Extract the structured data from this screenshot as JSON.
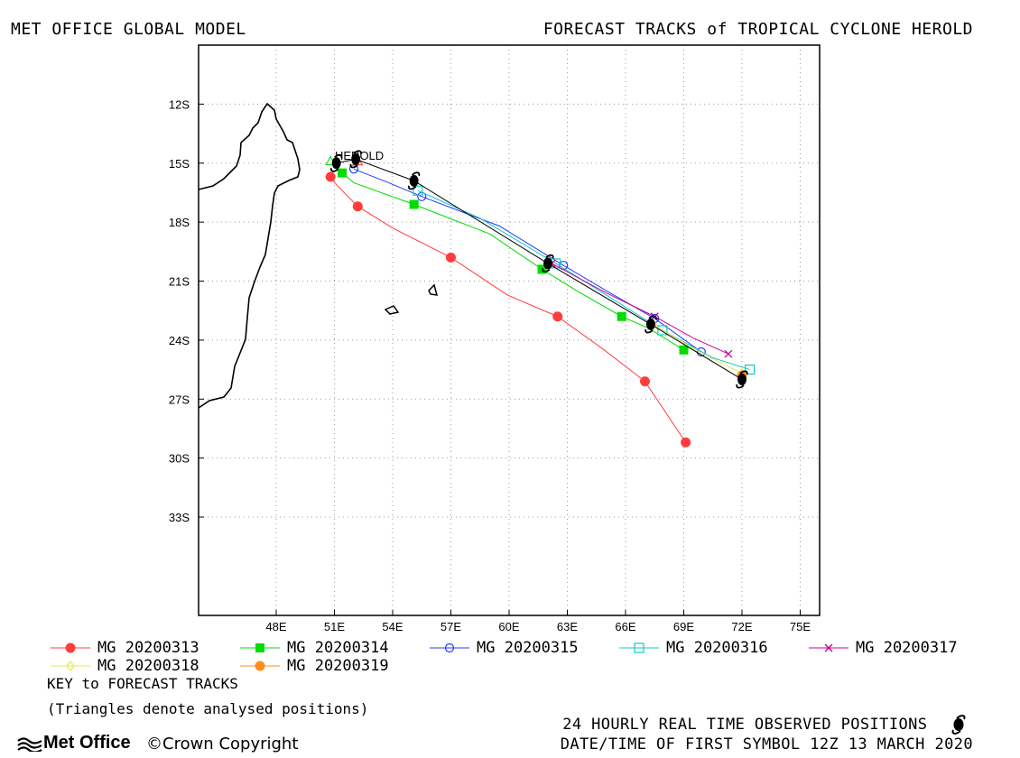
{
  "header": {
    "left_title": "MET OFFICE GLOBAL MODEL",
    "right_title": "FORECAST TRACKS of TROPICAL CYCLONE HEROLD"
  },
  "map": {
    "lon_range": [
      44.0,
      76.0
    ],
    "lat_range": [
      -38.0,
      -9.0
    ],
    "lon_ticks": [
      "48E",
      "51E",
      "54E",
      "57E",
      "60E",
      "63E",
      "66E",
      "69E",
      "72E",
      "75E"
    ],
    "lat_ticks": [
      "12S",
      "15S",
      "18S",
      "21S",
      "24S",
      "27S",
      "30S",
      "33S"
    ],
    "storm_label": "HEROLD",
    "grid": "dotted"
  },
  "chart_data": {
    "type": "line",
    "series": [
      {
        "name": "MG 20200313",
        "color": "#ff3c3c",
        "marker": "filled-circle",
        "lon": [
          50.8,
          51.1,
          52.2,
          54.0,
          57.0,
          59.9,
          62.5,
          64.9,
          67.0,
          69.1
        ],
        "lat": [
          -15.7,
          -16.1,
          -17.2,
          -18.3,
          -19.8,
          -21.7,
          -22.8,
          -24.5,
          -26.1,
          -29.2
        ]
      },
      {
        "name": "MG 20200314",
        "color": "#00dc00",
        "marker": "filled-square",
        "lon": [
          51.4,
          52.0,
          55.1,
          59.0,
          61.7,
          63.5,
          65.8,
          67.2,
          69.0
        ],
        "lat": [
          -15.5,
          -16.0,
          -17.1,
          -18.6,
          -20.4,
          -21.5,
          -22.8,
          -23.4,
          -24.5
        ]
      },
      {
        "name": "MG 20200315",
        "color": "#1e3cff",
        "marker": "open-circle",
        "lon": [
          52.0,
          53.8,
          55.5,
          59.5,
          62.8,
          65.2,
          67.5,
          69.9
        ],
        "lat": [
          -15.3,
          -16.0,
          -16.7,
          -18.2,
          -20.2,
          -21.6,
          -22.9,
          -24.6
        ]
      },
      {
        "name": "MG 20200316",
        "color": "#14c8c8",
        "marker": "open-square",
        "lon": [
          55.3,
          58.5,
          62.4,
          65.0,
          67.9,
          70.5,
          72.4
        ],
        "lat": [
          -16.4,
          -17.8,
          -20.1,
          -21.7,
          -23.5,
          -24.9,
          -25.5
        ]
      },
      {
        "name": "MG 20200317",
        "color": "#c8009b",
        "marker": "x",
        "lon": [
          62.2,
          65.0,
          67.5,
          69.5,
          71.3
        ],
        "lat": [
          -20.1,
          -21.6,
          -22.8,
          -23.9,
          -24.7
        ]
      },
      {
        "name": "MG 20200318",
        "color": "#e6e650",
        "marker": "open-diamond",
        "lon": [
          67.4,
          69.8,
          72.0
        ],
        "lat": [
          -23.2,
          -24.6,
          -25.7
        ]
      },
      {
        "name": "MG 20200319",
        "color": "#ff8c1e",
        "marker": "filled-circle",
        "lon": [
          72.0
        ],
        "lat": [
          -25.8
        ]
      }
    ],
    "observed": {
      "name": "24 HOURLY REAL TIME OBSERVED POSITIONS",
      "lon": [
        51.1,
        52.1,
        55.1,
        62.0,
        67.3,
        72.0
      ],
      "lat": [
        -15.0,
        -14.8,
        -15.9,
        -20.1,
        -23.2,
        -26.0
      ]
    },
    "analysed_triangles": {
      "lon": [
        50.8,
        52.2
      ],
      "lat": [
        -14.9,
        -14.9
      ]
    }
  },
  "legend": {
    "items": [
      "MG 20200313",
      "MG 20200314",
      "MG 20200315",
      "MG 20200316",
      "MG 20200317",
      "MG 20200318",
      "MG 20200319"
    ],
    "key_title": "KEY to FORECAST TRACKS",
    "key_note": "(Triangles denote analysed positions)"
  },
  "footer": {
    "observed_label": "24 HOURLY REAL TIME OBSERVED POSITIONS",
    "first_symbol": "DATE/TIME OF FIRST SYMBOL 12Z 13 MARCH 2020",
    "logo_text": "Met Office",
    "copyright": "Crown Copyright"
  }
}
